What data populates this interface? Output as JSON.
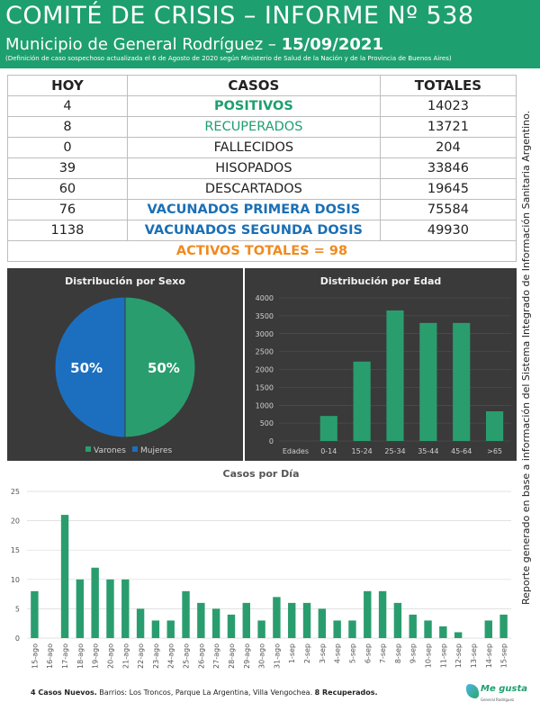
{
  "header": {
    "title": "COMITÉ DE CRISIS – INFORME Nº 538",
    "subtitle_prefix": "Municipio de General Rodríguez – ",
    "date": "15/09/2021",
    "note": "(Definición de caso sospechoso actualizada el 6 de Agosto de 2020 según Ministerio de Salud de la Nación y de la Provincia de Buenos Aires)"
  },
  "table": {
    "headers": [
      "HOY",
      "CASOS",
      "TOTALES"
    ],
    "rows": [
      {
        "hoy": "4",
        "caso": "POSITIVOS",
        "total": "14023"
      },
      {
        "hoy": "8",
        "caso": "RECUPERADOS",
        "total": "13721"
      },
      {
        "hoy": "0",
        "caso": "FALLECIDOS",
        "total": "204"
      },
      {
        "hoy": "39",
        "caso": "HISOPADOS",
        "total": "33846"
      },
      {
        "hoy": "60",
        "caso": "DESCARTADOS",
        "total": "19645"
      },
      {
        "hoy": "76",
        "caso": "VACUNADOS PRIMERA DOSIS",
        "total": "75584"
      },
      {
        "hoy": "1138",
        "caso": "VACUNADOS SEGUNDA DOSIS",
        "total": "49930"
      }
    ],
    "activos": "ACTIVOS TOTALES = 98"
  },
  "side_text": "Reporte generado en base a información del Sistema Integrado de Información Sanitaria Argentino.",
  "colors": {
    "brand_green": "#1e9f6f",
    "blue": "#1a6fb5",
    "orange": "#f08a1e",
    "panel": "#3a3a3a",
    "bar_green": "#2a9d6e"
  },
  "footer": {
    "bold_a": "4 Casos Nuevos.",
    "text_a": " Barrios: Los Troncos, Parque La Argentina, Villa Vengochea. ",
    "bold_b": "8 Recuperados.",
    "logo_text": "Me gusta",
    "logo_sub": "General Rodríguez"
  },
  "chart_data": [
    {
      "type": "pie",
      "title": "Distribución  por Sexo",
      "categories": [
        "Varones",
        "Mujeres"
      ],
      "values": [
        50,
        50
      ],
      "labels": [
        "50%",
        "50%"
      ],
      "colors": [
        "#2a9d6e",
        "#1c6fbf"
      ],
      "legend": "bottom"
    },
    {
      "type": "bar",
      "title": "Distribución  por Edad",
      "categories": [
        "0-14",
        "15-24",
        "25-34",
        "35-44",
        "45-64",
        ">65"
      ],
      "axis_category_label": "Edades",
      "values": [
        700,
        2220,
        3650,
        3300,
        3300,
        830
      ],
      "ylim": [
        0,
        4000
      ],
      "yticks": [
        0,
        500,
        1000,
        1500,
        2000,
        2500,
        3000,
        3500,
        4000
      ],
      "grid": true
    },
    {
      "type": "bar",
      "title": "Casos por Día",
      "categories": [
        "15-ago",
        "16-ago",
        "17-ago",
        "18-ago",
        "19-ago",
        "20-ago",
        "21-ago",
        "22-ago",
        "23-ago",
        "24-ago",
        "25-ago",
        "26-ago",
        "27-ago",
        "28-ago",
        "29-ago",
        "30-ago",
        "31-ago",
        "1-sep",
        "2-sep",
        "3-sep",
        "4-sep",
        "5-sep",
        "6-sep",
        "7-sep",
        "8-sep",
        "9-sep",
        "10-sep",
        "11-sep",
        "12-sep",
        "13-sep",
        "14-sep",
        "15-sep"
      ],
      "values": [
        8,
        0,
        21,
        10,
        12,
        10,
        10,
        5,
        3,
        3,
        8,
        6,
        5,
        4,
        6,
        3,
        7,
        6,
        6,
        5,
        3,
        3,
        8,
        8,
        6,
        4,
        3,
        2,
        1,
        0,
        3,
        4
      ],
      "ylim": [
        0,
        25
      ],
      "yticks": [
        0,
        5,
        10,
        15,
        20,
        25
      ],
      "grid": true
    }
  ]
}
